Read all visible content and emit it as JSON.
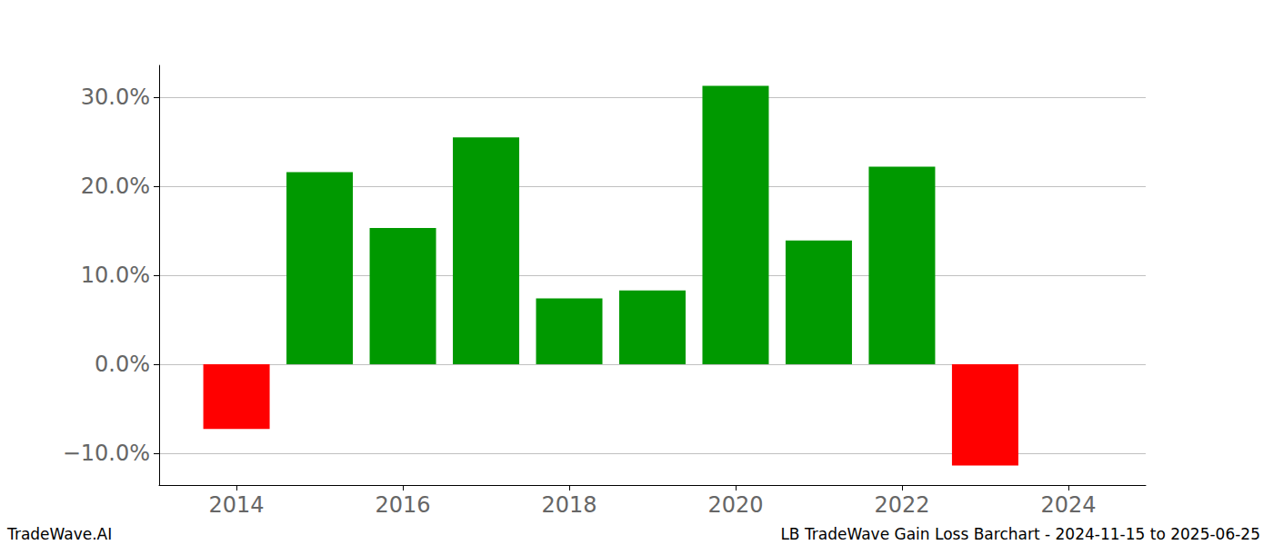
{
  "chart_data": {
    "type": "bar",
    "x": [
      2014,
      2015,
      2016,
      2017,
      2018,
      2019,
      2020,
      2021,
      2022,
      2023
    ],
    "values": [
      -7.3,
      21.6,
      15.3,
      25.5,
      7.4,
      8.3,
      31.3,
      13.9,
      22.2,
      -11.4
    ],
    "colors": [
      "#ff0000",
      "#009900",
      "#009900",
      "#009900",
      "#009900",
      "#009900",
      "#009900",
      "#009900",
      "#009900",
      "#ff0000"
    ],
    "xlim": [
      2013.07,
      2024.93
    ],
    "xticks": [
      2014,
      2016,
      2018,
      2020,
      2022,
      2024
    ],
    "ylim": [
      -13.6,
      33.6
    ],
    "yticks": [
      {
        "value": -10,
        "label": "−10.0%"
      },
      {
        "value": 0,
        "label": "0.0%"
      },
      {
        "value": 10,
        "label": "10.0%"
      },
      {
        "value": 20,
        "label": "20.0%"
      },
      {
        "value": 30,
        "label": "30.0%"
      }
    ],
    "grid": true,
    "annotations": [
      "TradeWave.AI",
      "LB TradeWave Gain Loss Barchart - 2024-11-15 to 2025-06-25"
    ]
  }
}
